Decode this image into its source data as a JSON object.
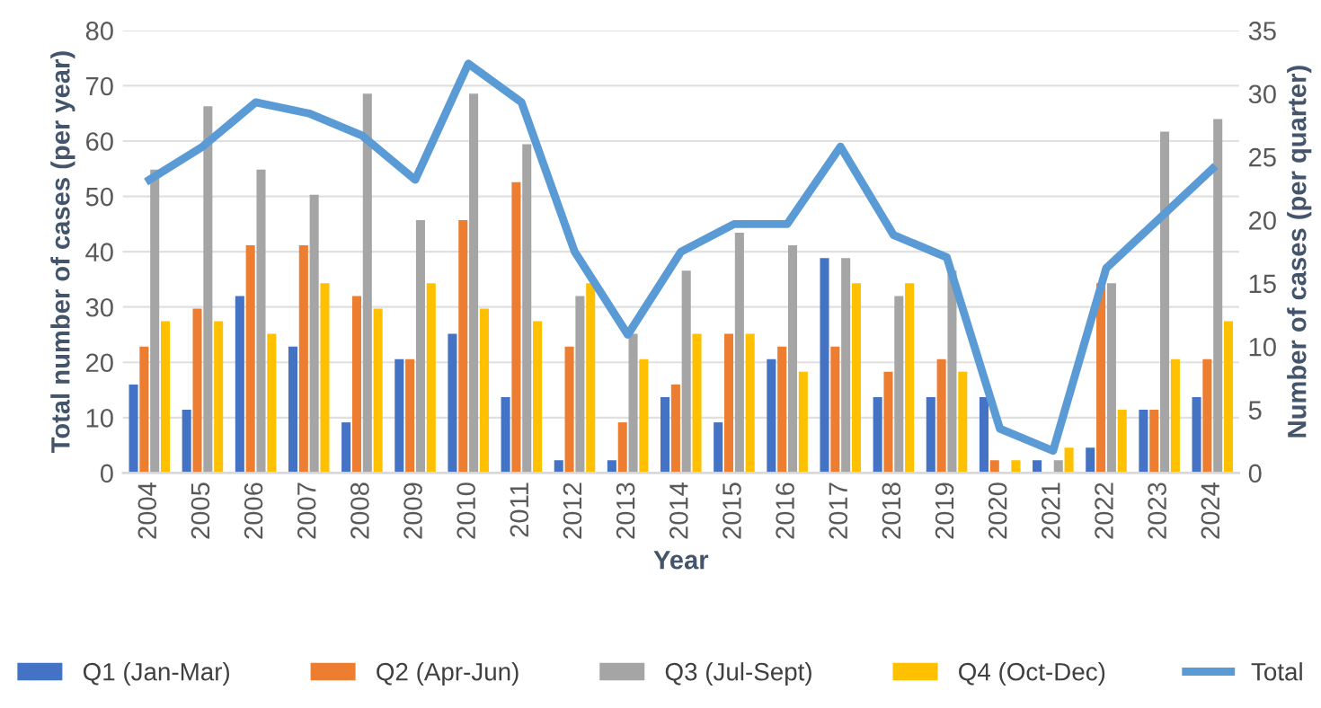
{
  "chart_data": {
    "type": "bar",
    "xlabel": "Year",
    "ylabel": "Total number of cases (per year)",
    "y2label": "Number of cases (per quarter)",
    "categories": [
      "2004",
      "2005",
      "2006",
      "2007",
      "2008",
      "2009",
      "2010",
      "2011",
      "2012",
      "2013",
      "2014",
      "2015",
      "2016",
      "2017",
      "2018",
      "2019",
      "2020",
      "2021",
      "2022",
      "2023",
      "2024"
    ],
    "series": [
      {
        "name": "Q1 (Jan-Mar)",
        "axis": "y2",
        "color": "#4472c4",
        "values": [
          7,
          5,
          14,
          10,
          4,
          9,
          11,
          6,
          1,
          1,
          6,
          4,
          9,
          17,
          6,
          6,
          6,
          1,
          2,
          5,
          6
        ]
      },
      {
        "name": "Q2 (Apr-Jun)",
        "axis": "y2",
        "color": "#ed7d31",
        "values": [
          10,
          13,
          18,
          18,
          14,
          9,
          20,
          23,
          10,
          4,
          7,
          11,
          10,
          10,
          8,
          9,
          1,
          0,
          15,
          5,
          9
        ]
      },
      {
        "name": "Q3 (Jul-Sept)",
        "axis": "y2",
        "color": "#a5a5a5",
        "values": [
          24,
          29,
          24,
          22,
          30,
          20,
          30,
          26,
          14,
          11,
          16,
          19,
          18,
          17,
          14,
          16,
          0,
          1,
          15,
          27,
          28
        ]
      },
      {
        "name": "Q4 (Oct-Dec)",
        "axis": "y2",
        "color": "#ffc000",
        "values": [
          12,
          12,
          11,
          15,
          13,
          15,
          13,
          12,
          15,
          9,
          11,
          11,
          8,
          15,
          15,
          8,
          1,
          2,
          5,
          9,
          12
        ]
      },
      {
        "name": "Total",
        "type": "line",
        "axis": "y",
        "color": "#5b9bd5",
        "values": [
          53,
          59,
          67,
          65,
          61,
          53,
          74,
          67,
          40,
          25,
          40,
          45,
          45,
          59,
          43,
          39,
          8,
          4,
          37,
          46,
          55
        ]
      }
    ],
    "ylim": [
      0,
      80
    ],
    "yticks": [
      0,
      10,
      20,
      30,
      40,
      50,
      60,
      70,
      80
    ],
    "y2lim": [
      0,
      35
    ],
    "y2ticks": [
      0,
      5,
      10,
      15,
      20,
      25,
      30,
      35
    ],
    "grid": "y",
    "legend": "bottom",
    "marker": "none",
    "line_style": "solid"
  }
}
